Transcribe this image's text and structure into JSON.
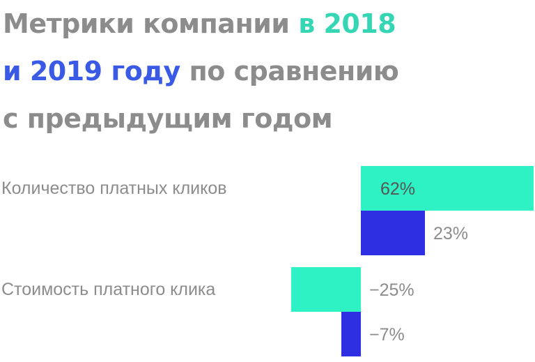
{
  "title": {
    "part1": "Метрики компании ",
    "part2": "в 2018",
    "part3": "и 2019 году",
    "part4": " по сравнению",
    "part5": "с предыдущим годом"
  },
  "colors": {
    "text_gray": "#8c8c8c",
    "year_2018": "#2ef2c4",
    "year_2019": "#2e2ee3",
    "title_2018": "#36d6b4",
    "title_2019": "#3a5ae6",
    "label_dark": "#555555"
  },
  "chart_data": {
    "type": "bar",
    "orientation": "horizontal",
    "categories": [
      "Количество платных кликов",
      "Стоимость платного клика"
    ],
    "series": [
      {
        "values": [
          62,
          -25
        ],
        "labels": [
          "62%",
          "−25%"
        ],
        "color": "#2ef2c4"
      },
      {
        "values": [
          23,
          -7
        ],
        "labels": [
          "23%",
          "−7%"
        ],
        "color": "#2e2ee3"
      }
    ],
    "unit": "%"
  }
}
